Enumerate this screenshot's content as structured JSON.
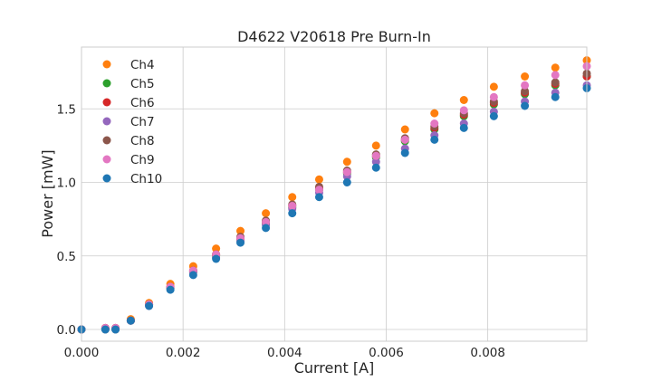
{
  "chart_data": {
    "type": "scatter",
    "title": "D4622 V20618 Pre Burn-In",
    "xlabel": "Current [A]",
    "ylabel": "Power [mW]",
    "xlim": [
      0.0,
      0.00995
    ],
    "ylim": [
      -0.08,
      1.92
    ],
    "xticks": [
      0.0,
      0.002,
      0.004,
      0.006,
      0.008
    ],
    "xtick_labels": [
      "0.000",
      "0.002",
      "0.004",
      "0.006",
      "0.008"
    ],
    "yticks": [
      0.0,
      0.5,
      1.0,
      1.5
    ],
    "ytick_labels": [
      "0.0",
      "0.5",
      "1.0",
      "1.5"
    ],
    "grid": true,
    "legend_position": "upper-left",
    "x": [
      0.0,
      0.00047,
      0.00067,
      0.00097,
      0.00133,
      0.00175,
      0.0022,
      0.00265,
      0.00313,
      0.00363,
      0.00415,
      0.00468,
      0.00523,
      0.0058,
      0.00637,
      0.00695,
      0.00753,
      0.00812,
      0.00873,
      0.00933,
      0.00995
    ],
    "series": [
      {
        "name": "Ch4",
        "color": "#ff7f0e",
        "values": [
          0.0,
          0.01,
          0.01,
          0.07,
          0.18,
          0.31,
          0.43,
          0.55,
          0.67,
          0.79,
          0.9,
          1.02,
          1.14,
          1.25,
          1.36,
          1.47,
          1.56,
          1.65,
          1.72,
          1.78,
          1.83
        ]
      },
      {
        "name": "Ch5",
        "color": "#2ca02c",
        "values": [
          0.0,
          0.0,
          0.0,
          0.06,
          0.17,
          0.28,
          0.39,
          0.5,
          0.61,
          0.72,
          0.83,
          0.95,
          1.06,
          1.17,
          1.28,
          1.36,
          1.45,
          1.53,
          1.6,
          1.66,
          1.72
        ]
      },
      {
        "name": "Ch6",
        "color": "#d62728",
        "values": [
          0.0,
          0.01,
          0.01,
          0.06,
          0.17,
          0.29,
          0.4,
          0.51,
          0.62,
          0.73,
          0.84,
          0.96,
          1.07,
          1.18,
          1.29,
          1.37,
          1.46,
          1.54,
          1.61,
          1.67,
          1.72
        ]
      },
      {
        "name": "Ch7",
        "color": "#9467bd",
        "values": [
          0.0,
          0.0,
          0.0,
          0.06,
          0.16,
          0.28,
          0.39,
          0.49,
          0.6,
          0.71,
          0.82,
          0.93,
          1.04,
          1.14,
          1.23,
          1.32,
          1.4,
          1.48,
          1.55,
          1.61,
          1.66
        ]
      },
      {
        "name": "Ch8",
        "color": "#8c564b",
        "values": [
          0.0,
          0.01,
          0.01,
          0.06,
          0.17,
          0.29,
          0.4,
          0.51,
          0.63,
          0.74,
          0.85,
          0.97,
          1.08,
          1.19,
          1.3,
          1.38,
          1.47,
          1.55,
          1.62,
          1.68,
          1.74
        ]
      },
      {
        "name": "Ch9",
        "color": "#e377c2",
        "values": [
          0.0,
          0.01,
          0.01,
          0.06,
          0.17,
          0.29,
          0.4,
          0.51,
          0.62,
          0.73,
          0.84,
          0.95,
          1.07,
          1.18,
          1.29,
          1.4,
          1.49,
          1.58,
          1.66,
          1.73,
          1.79
        ]
      },
      {
        "name": "Ch10",
        "color": "#1f77b4",
        "values": [
          0.0,
          0.0,
          0.0,
          0.06,
          0.16,
          0.27,
          0.37,
          0.48,
          0.59,
          0.69,
          0.79,
          0.9,
          1.0,
          1.1,
          1.2,
          1.29,
          1.37,
          1.45,
          1.52,
          1.58,
          1.64
        ]
      }
    ]
  }
}
